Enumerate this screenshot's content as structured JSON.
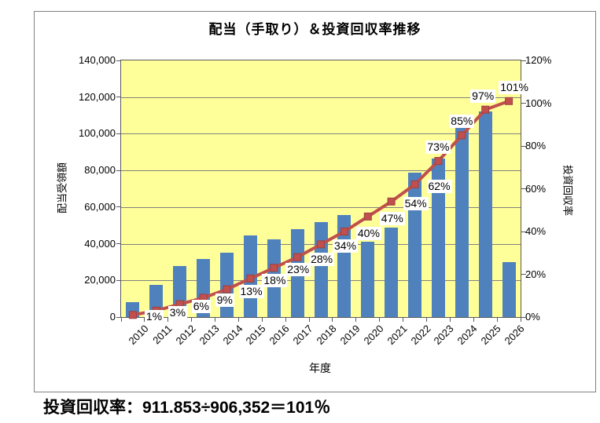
{
  "chart_data": {
    "type": "combo-bar-line",
    "title": "配当（手取り）＆投資回収率推移",
    "xlabel": "年度",
    "categories": [
      "2010",
      "2011",
      "2012",
      "2013",
      "2014",
      "2015",
      "2016",
      "2017",
      "2018",
      "2019",
      "2020",
      "2021",
      "2022",
      "2023",
      "2024",
      "2025",
      "2026"
    ],
    "series": [
      {
        "name": "配当受領額",
        "type": "bar",
        "axis": "left",
        "color": "#4F81BD",
        "values": [
          8000,
          17500,
          28000,
          31500,
          35000,
          44500,
          42500,
          48000,
          52000,
          55500,
          41000,
          49000,
          79000,
          86500,
          103500,
          112000,
          30000
        ]
      },
      {
        "name": "投資回収率",
        "type": "line",
        "axis": "right",
        "color": "#C0504D",
        "values_pct": [
          1,
          3,
          6,
          9,
          13,
          18,
          23,
          28,
          34,
          40,
          47,
          54,
          62,
          73,
          85,
          97,
          101
        ],
        "point_labels": [
          "1%",
          "3%",
          "6%",
          "9%",
          "13%",
          "18%",
          "23%",
          "28%",
          "34%",
          "40%",
          "47%",
          "54%",
          "62%",
          "73%",
          "85%",
          "97%",
          "101%"
        ]
      }
    ],
    "axis_left": {
      "title": "配当受領額",
      "min": 0,
      "max": 140000,
      "tick_labels": [
        "0",
        "20,000",
        "40,000",
        "60,000",
        "80,000",
        "100,000",
        "120,000",
        "140,000"
      ],
      "tick_values": [
        0,
        20000,
        40000,
        60000,
        80000,
        100000,
        120000,
        140000
      ]
    },
    "axis_right": {
      "title": "投資回収率",
      "min_pct": 0,
      "max_pct": 120,
      "tick_labels": [
        "0%",
        "20%",
        "40%",
        "60%",
        "80%",
        "100%",
        "120%"
      ],
      "tick_values_pct": [
        0,
        20,
        40,
        60,
        80,
        100,
        120
      ]
    },
    "plot_bg_color": "#FFFF99",
    "grid": true,
    "legend": "none"
  },
  "footer": {
    "formula": "投資回収率：911.853÷906,352＝101％"
  }
}
